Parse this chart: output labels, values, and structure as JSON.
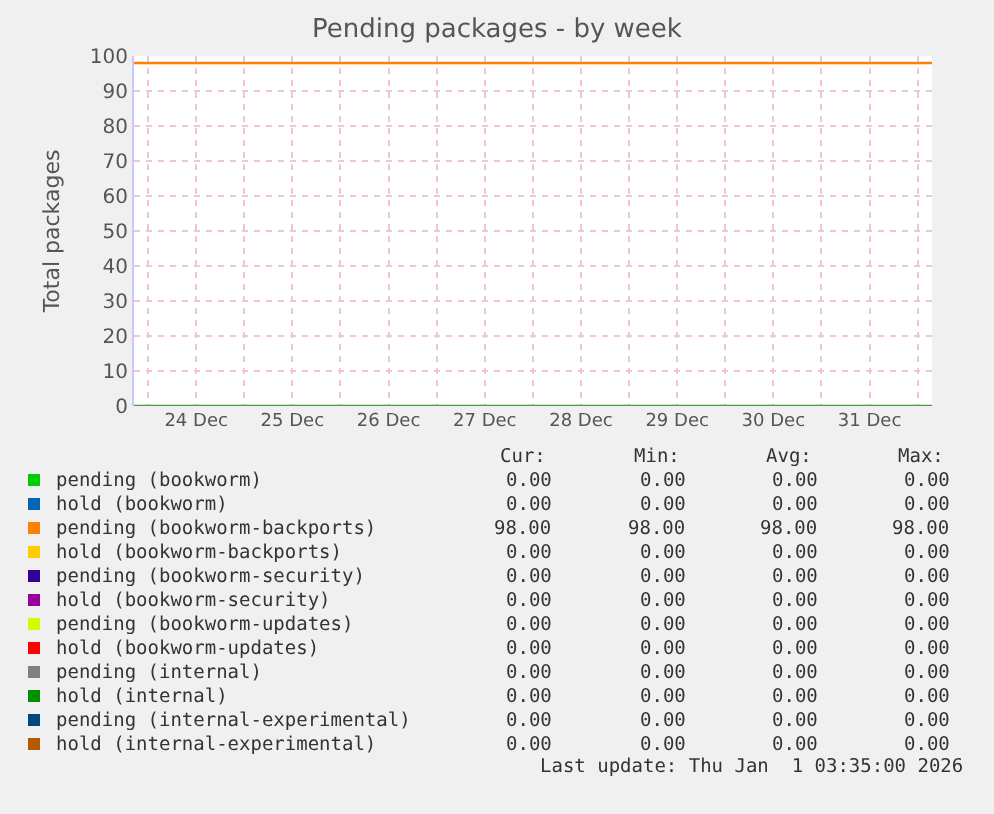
{
  "chart_data": {
    "type": "line",
    "title": "Pending packages - by week",
    "ylabel": "Total packages",
    "x": [
      "2025-12-23T20:30",
      "2026-01-01T03:35"
    ],
    "xlim": [
      "2025-12-23T20:30",
      "2026-01-01T03:35"
    ],
    "xticks": [
      {
        "value": "2025-12-24T00:00",
        "label": null
      },
      {
        "value": "2025-12-24T12:00",
        "label": "24 Dec"
      },
      {
        "value": "2025-12-25T00:00",
        "label": null
      },
      {
        "value": "2025-12-25T12:00",
        "label": "25 Dec"
      },
      {
        "value": "2025-12-26T00:00",
        "label": null
      },
      {
        "value": "2025-12-26T12:00",
        "label": "26 Dec"
      },
      {
        "value": "2025-12-27T00:00",
        "label": null
      },
      {
        "value": "2025-12-27T12:00",
        "label": "27 Dec"
      },
      {
        "value": "2025-12-28T00:00",
        "label": null
      },
      {
        "value": "2025-12-28T12:00",
        "label": "28 Dec"
      },
      {
        "value": "2025-12-29T00:00",
        "label": null
      },
      {
        "value": "2025-12-29T12:00",
        "label": "29 Dec"
      },
      {
        "value": "2025-12-30T00:00",
        "label": null
      },
      {
        "value": "2025-12-30T12:00",
        "label": "30 Dec"
      },
      {
        "value": "2025-12-31T00:00",
        "label": null
      },
      {
        "value": "2025-12-31T12:00",
        "label": "31 Dec"
      },
      {
        "value": "2026-01-01T00:00",
        "label": null
      }
    ],
    "ylim": [
      0,
      100
    ],
    "yticks": [
      0,
      10,
      20,
      30,
      40,
      50,
      60,
      70,
      80,
      90,
      100
    ],
    "grid": true,
    "legend": "bottom",
    "series": [
      {
        "name": "pending (bookworm)",
        "color": "#00cc00",
        "values": [
          0,
          0
        ]
      },
      {
        "name": "hold (bookworm)",
        "color": "#0066b3",
        "values": [
          null,
          null
        ]
      },
      {
        "name": "pending (bookworm-backports)",
        "color": "#ff8000",
        "values": [
          98,
          98
        ]
      },
      {
        "name": "hold (bookworm-backports)",
        "color": "#ffcc00",
        "values": [
          null,
          null
        ]
      },
      {
        "name": "pending (bookworm-security)",
        "color": "#330099",
        "values": [
          null,
          null
        ]
      },
      {
        "name": "hold (bookworm-security)",
        "color": "#990099",
        "values": [
          null,
          null
        ]
      },
      {
        "name": "pending (bookworm-updates)",
        "color": "#ccff00",
        "values": [
          null,
          null
        ]
      },
      {
        "name": "hold (bookworm-updates)",
        "color": "#ff0000",
        "values": [
          null,
          null
        ]
      },
      {
        "name": "pending (internal)",
        "color": "#808080",
        "values": [
          null,
          null
        ]
      },
      {
        "name": "hold (internal)",
        "color": "#008f00",
        "values": [
          null,
          null
        ]
      },
      {
        "name": "pending (internal-experimental)",
        "color": "#00487d",
        "values": [
          null,
          null
        ]
      },
      {
        "name": "hold (internal-experimental)",
        "color": "#b35a00",
        "values": [
          null,
          null
        ]
      }
    ],
    "annotations": [
      "Cur:",
      "Min:",
      "Avg:",
      "Max:",
      "0.00",
      "0.00",
      "0.00",
      "0.00",
      "0.00",
      "0.00",
      "0.00",
      "0.00",
      "98.00",
      "98.00",
      "98.00",
      "98.00",
      "0.00",
      "0.00",
      "0.00",
      "0.00",
      "0.00",
      "0.00",
      "0.00",
      "0.00",
      "0.00",
      "0.00",
      "0.00",
      "0.00",
      "0.00",
      "0.00",
      "0.00",
      "0.00",
      "0.00",
      "0.00",
      "0.00",
      "0.00",
      "0.00",
      "0.00",
      "0.00",
      "0.00",
      "0.00",
      "0.00",
      "0.00",
      "0.00",
      "0.00",
      "0.00",
      "0.00",
      "0.00",
      "0.00",
      "0.00",
      "0.00",
      "0.00",
      "Last update: Thu Jan  1 03:35:00 2026"
    ]
  }
}
